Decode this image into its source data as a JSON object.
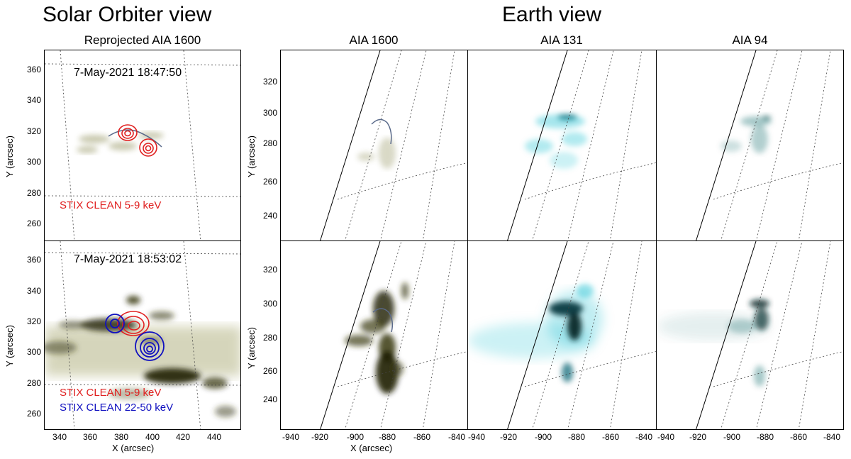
{
  "headers": {
    "solar_orbiter": "Solar Orbiter view",
    "earth": "Earth view"
  },
  "panel_titles": {
    "reprojected": "Reprojected AIA 1600",
    "aia1600": "AIA 1600",
    "aia131": "AIA 131",
    "aia94": "AIA 94"
  },
  "timestamps": {
    "top": "7-May-2021 18:47:50",
    "bottom": "7-May-2021 18:53:02"
  },
  "legend": {
    "stix_low": "STIX CLEAN 5-9 keV",
    "stix_high": "STIX CLEAN 22-50 keV",
    "stix_low_color": "#e02020",
    "stix_high_color": "#1010c0"
  },
  "axes": {
    "left_ylabel": "Y (arcsec)",
    "left_xlabel": "X (arcsec)",
    "left_yticks": [
      "360",
      "340",
      "320",
      "300",
      "280",
      "260"
    ],
    "left_xticks": [
      "340",
      "360",
      "380",
      "400",
      "420",
      "440"
    ],
    "right_ylabel": "Y (arcsec)",
    "right_xlabel": "X (arcsec)",
    "right_yticks": [
      "320",
      "300",
      "280",
      "260",
      "240"
    ],
    "right_xticks": [
      "-940",
      "-920",
      "-900",
      "-880",
      "-860",
      "-840"
    ]
  },
  "colors": {
    "aia1600": "#2a2a08",
    "aia131": "#00b8cc",
    "aia94": "#0a4a4a"
  }
}
